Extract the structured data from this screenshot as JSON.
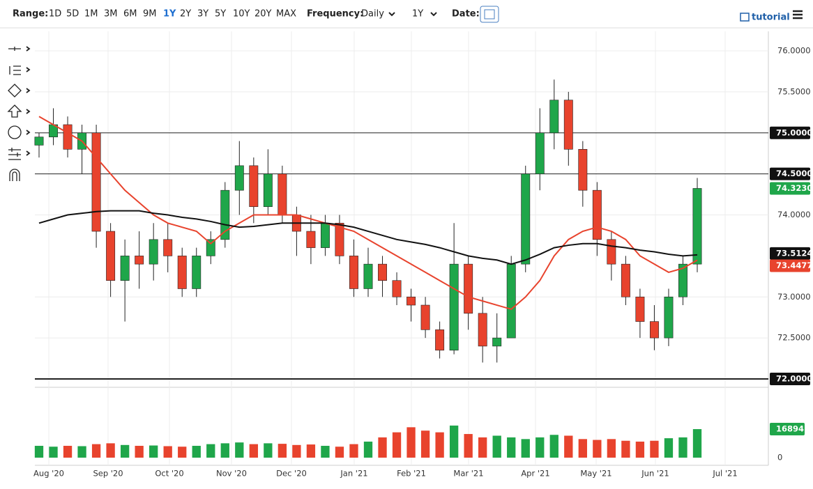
{
  "toolbar": {
    "range_label": "Range:",
    "ranges": [
      "1D",
      "5D",
      "1M",
      "3M",
      "6M",
      "9M",
      "1Y",
      "2Y",
      "3Y",
      "5Y",
      "10Y",
      "20Y",
      "MAX"
    ],
    "active_range": "1Y",
    "frequency_label": "Frequency:",
    "frequency": "Daily",
    "period": "1Y",
    "date_label": "Date:",
    "tutorial": "tutorial"
  },
  "chart_data": {
    "type": "candlestick",
    "up_color": "#1fa64a",
    "down_color": "#e8432d",
    "xtick_labels": [
      "Aug '20",
      "Sep '20",
      "Oct '20",
      "Nov '20",
      "Dec '20",
      "Jan '21",
      "Feb '21",
      "Mar '21",
      "Apr '21",
      "May '21",
      "Jun '21",
      "Jul '21"
    ],
    "ylim": [
      71.85,
      76.1
    ],
    "yticks": [
      {
        "value": 76,
        "label": "76.0000"
      },
      {
        "value": 75.5,
        "label": "75.5000"
      },
      {
        "value": 74,
        "label": "74.0000"
      },
      {
        "value": 73,
        "label": "73.0000"
      },
      {
        "value": 72.5,
        "label": "72.5000"
      }
    ],
    "grid": true,
    "levels": [
      {
        "value": 75,
        "label": "75.0000"
      },
      {
        "value": 74.5,
        "label": "74.5000"
      },
      {
        "value": 72,
        "label": "72.0000"
      }
    ],
    "open": [
      74.85,
      74.95,
      75.1,
      74.8,
      75.0,
      73.8,
      73.2,
      73.5,
      73.4,
      73.7,
      73.5,
      73.1,
      73.5,
      73.7,
      74.3,
      74.6,
      74.1,
      74.5,
      74.0,
      73.8,
      73.6,
      73.9,
      73.5,
      73.1,
      73.4,
      73.2,
      73.0,
      72.9,
      72.6,
      72.35,
      73.4,
      72.8,
      72.4,
      72.5,
      73.4,
      74.5,
      75.0,
      75.4,
      74.8,
      74.3,
      73.7,
      73.4,
      73.0,
      72.7,
      72.5,
      73.0,
      73.4
    ],
    "high": [
      75.0,
      75.3,
      75.2,
      75.1,
      75.1,
      73.9,
      73.7,
      73.8,
      73.9,
      73.9,
      73.6,
      73.6,
      73.8,
      74.4,
      74.9,
      74.7,
      74.8,
      74.6,
      74.1,
      74.0,
      74.0,
      74.0,
      73.7,
      73.6,
      73.5,
      73.3,
      73.1,
      73.0,
      72.7,
      73.9,
      73.5,
      73.0,
      72.8,
      73.5,
      74.6,
      75.3,
      75.65,
      75.5,
      74.9,
      74.4,
      73.8,
      73.5,
      73.1,
      72.9,
      73.1,
      73.5,
      74.45
    ],
    "low": [
      74.7,
      74.85,
      74.7,
      74.5,
      73.6,
      73.0,
      72.7,
      73.1,
      73.2,
      73.3,
      73.0,
      73.0,
      73.4,
      73.6,
      74.0,
      73.9,
      74.0,
      73.9,
      73.5,
      73.4,
      73.5,
      73.4,
      73.0,
      73.0,
      73.0,
      72.9,
      72.7,
      72.5,
      72.25,
      72.3,
      72.6,
      72.2,
      72.2,
      72.5,
      73.3,
      74.3,
      74.8,
      74.6,
      74.1,
      73.5,
      73.2,
      72.9,
      72.5,
      72.35,
      72.4,
      72.9,
      73.3
    ],
    "close": [
      74.95,
      75.1,
      74.8,
      75.0,
      73.8,
      73.2,
      73.5,
      73.4,
      73.7,
      73.5,
      73.1,
      73.5,
      73.7,
      74.3,
      74.6,
      74.1,
      74.5,
      74.0,
      73.8,
      73.6,
      73.9,
      73.5,
      73.1,
      73.4,
      73.2,
      73.0,
      72.9,
      72.6,
      72.35,
      73.4,
      72.8,
      72.4,
      72.5,
      73.4,
      74.5,
      75.0,
      75.4,
      74.8,
      74.3,
      73.7,
      73.4,
      73.0,
      72.7,
      72.5,
      73.0,
      73.4,
      74.323
    ],
    "last_close_label": "74.3230",
    "ma_lines": [
      {
        "color": "#e8432d",
        "values": [
          75.2,
          75.1,
          75.0,
          74.9,
          74.7,
          74.5,
          74.3,
          74.15,
          74.0,
          73.9,
          73.85,
          73.8,
          73.65,
          73.8,
          73.9,
          74.0,
          74.0,
          74.0,
          74.0,
          73.95,
          73.9,
          73.85,
          73.8,
          73.7,
          73.6,
          73.5,
          73.4,
          73.3,
          73.2,
          73.1,
          73.0,
          72.95,
          72.9,
          72.85,
          73.0,
          73.2,
          73.5,
          73.7,
          73.8,
          73.85,
          73.8,
          73.7,
          73.5,
          73.4,
          73.3,
          73.35,
          73.4477
        ],
        "last_label": "73.4477"
      },
      {
        "color": "#111111",
        "values": [
          73.9,
          73.95,
          74.0,
          74.02,
          74.04,
          74.05,
          74.05,
          74.05,
          74.02,
          74.0,
          73.97,
          73.95,
          73.92,
          73.88,
          73.85,
          73.86,
          73.88,
          73.9,
          73.9,
          73.9,
          73.9,
          73.88,
          73.85,
          73.8,
          73.75,
          73.7,
          73.67,
          73.64,
          73.6,
          73.55,
          73.5,
          73.47,
          73.45,
          73.4,
          73.45,
          73.52,
          73.6,
          73.63,
          73.65,
          73.65,
          73.62,
          73.6,
          73.57,
          73.55,
          73.52,
          73.5,
          73.5124
        ],
        "last_label": "73.5124"
      }
    ],
    "volume": [
      7000,
      6500,
      7000,
      6800,
      8000,
      8500,
      7500,
      7000,
      7200,
      6800,
      6500,
      7000,
      8000,
      8500,
      9000,
      8000,
      8500,
      8200,
      7500,
      7800,
      7000,
      6500,
      8000,
      9500,
      12000,
      15000,
      18000,
      16000,
      15000,
      19000,
      14000,
      12000,
      13000,
      12000,
      11000,
      12000,
      13500,
      13000,
      11000,
      10500,
      11000,
      10000,
      9500,
      10000,
      11500,
      12000,
      16894
    ],
    "last_volume_label": "16894",
    "volume_ylim": [
      0,
      40000
    ],
    "volume_yticks": [
      0
    ]
  }
}
